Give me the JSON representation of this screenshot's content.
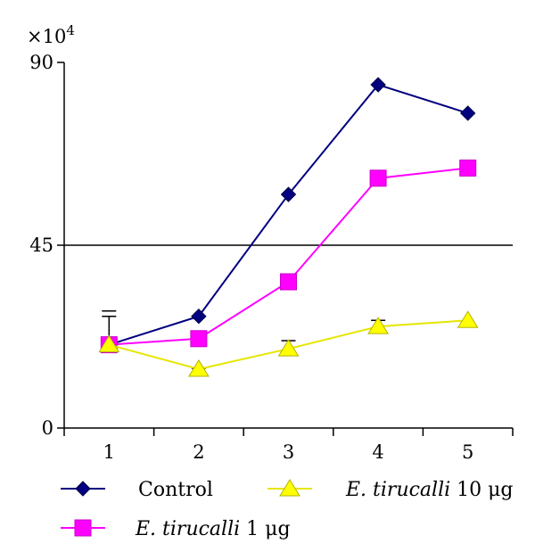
{
  "chart_data": {
    "type": "line",
    "multiplier_label": "×10",
    "multiplier_exponent": "4",
    "x": [
      1,
      2,
      3,
      4,
      5
    ],
    "x_tick_labels": [
      "1",
      "2",
      "3",
      "4",
      "5"
    ],
    "y_tick_labels": [
      "0",
      "45",
      "90"
    ],
    "y_ticks": [
      0,
      45,
      90
    ],
    "ylim": [
      0,
      90
    ],
    "xlim": [
      0.5,
      5.5
    ],
    "reference_line_y": 45,
    "grid": false,
    "legend_position": "bottom",
    "series": [
      {
        "name": "Control",
        "marker": "diamond",
        "color": "#000080",
        "values": [
          20.5,
          27.5,
          57.5,
          84.5,
          77.5
        ],
        "error_upper": [
          27.5,
          null,
          null,
          null,
          null
        ]
      },
      {
        "name": "E. tirucalli 1 μg",
        "name_italic": "E. tirucalli",
        "name_rest": " 1 μg",
        "marker": "square",
        "color": "#ff00ff",
        "values": [
          20.5,
          22,
          36,
          61.5,
          64
        ],
        "error_upper": [
          null,
          null,
          null,
          null,
          null
        ]
      },
      {
        "name": "E. tirucalli 10 μg",
        "name_italic": "E. tirucalli",
        "name_rest": " 10 μg",
        "marker": "triangle",
        "color": "#ffff00",
        "values": [
          20.5,
          14.5,
          19.5,
          25,
          26.5
        ],
        "error_upper": [
          null,
          14.7,
          21.5,
          26.5,
          null
        ]
      }
    ]
  }
}
